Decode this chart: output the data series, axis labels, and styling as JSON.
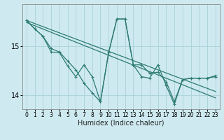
{
  "xlabel": "Humidex (Indice chaleur)",
  "bg_color": "#ceeaf0",
  "grid_color": "#b0d4dc",
  "line_color": "#2d7b72",
  "x_min": -0.5,
  "x_max": 23.5,
  "y_min": 13.72,
  "y_max": 15.85,
  "yticks": [
    14,
    15
  ],
  "xticks": [
    0,
    1,
    2,
    3,
    4,
    5,
    6,
    7,
    8,
    9,
    10,
    11,
    12,
    13,
    14,
    15,
    16,
    17,
    18,
    19,
    20,
    21,
    22,
    23
  ],
  "line1_x": [
    0,
    23
  ],
  "line1_y": [
    15.52,
    14.08
  ],
  "line2_x": [
    0,
    23
  ],
  "line2_y": [
    15.48,
    13.95
  ],
  "curve1_x": [
    0,
    1,
    2,
    3,
    4,
    5,
    6,
    7,
    8,
    9,
    10,
    11,
    12,
    13,
    14,
    15,
    16,
    17,
    18,
    19,
    20,
    21,
    22,
    23
  ],
  "curve1_y": [
    15.52,
    15.35,
    15.2,
    14.88,
    14.87,
    14.6,
    14.38,
    14.62,
    14.38,
    13.87,
    14.87,
    15.55,
    15.55,
    14.62,
    14.62,
    14.45,
    14.47,
    14.28,
    13.87,
    14.32,
    14.35,
    14.35,
    14.35,
    14.38
  ],
  "curve2_x": [
    0,
    1,
    2,
    3,
    4,
    5,
    6,
    7,
    8,
    9,
    10,
    11,
    12,
    13,
    14,
    15,
    16,
    17,
    18,
    19,
    20,
    21,
    22,
    23
  ],
  "curve2_y": [
    15.52,
    15.35,
    15.2,
    14.95,
    14.88,
    14.7,
    14.52,
    14.25,
    14.05,
    13.87,
    14.87,
    15.55,
    15.55,
    14.62,
    14.38,
    14.35,
    14.62,
    14.2,
    13.82,
    14.32,
    14.35,
    14.35,
    14.35,
    14.4
  ]
}
